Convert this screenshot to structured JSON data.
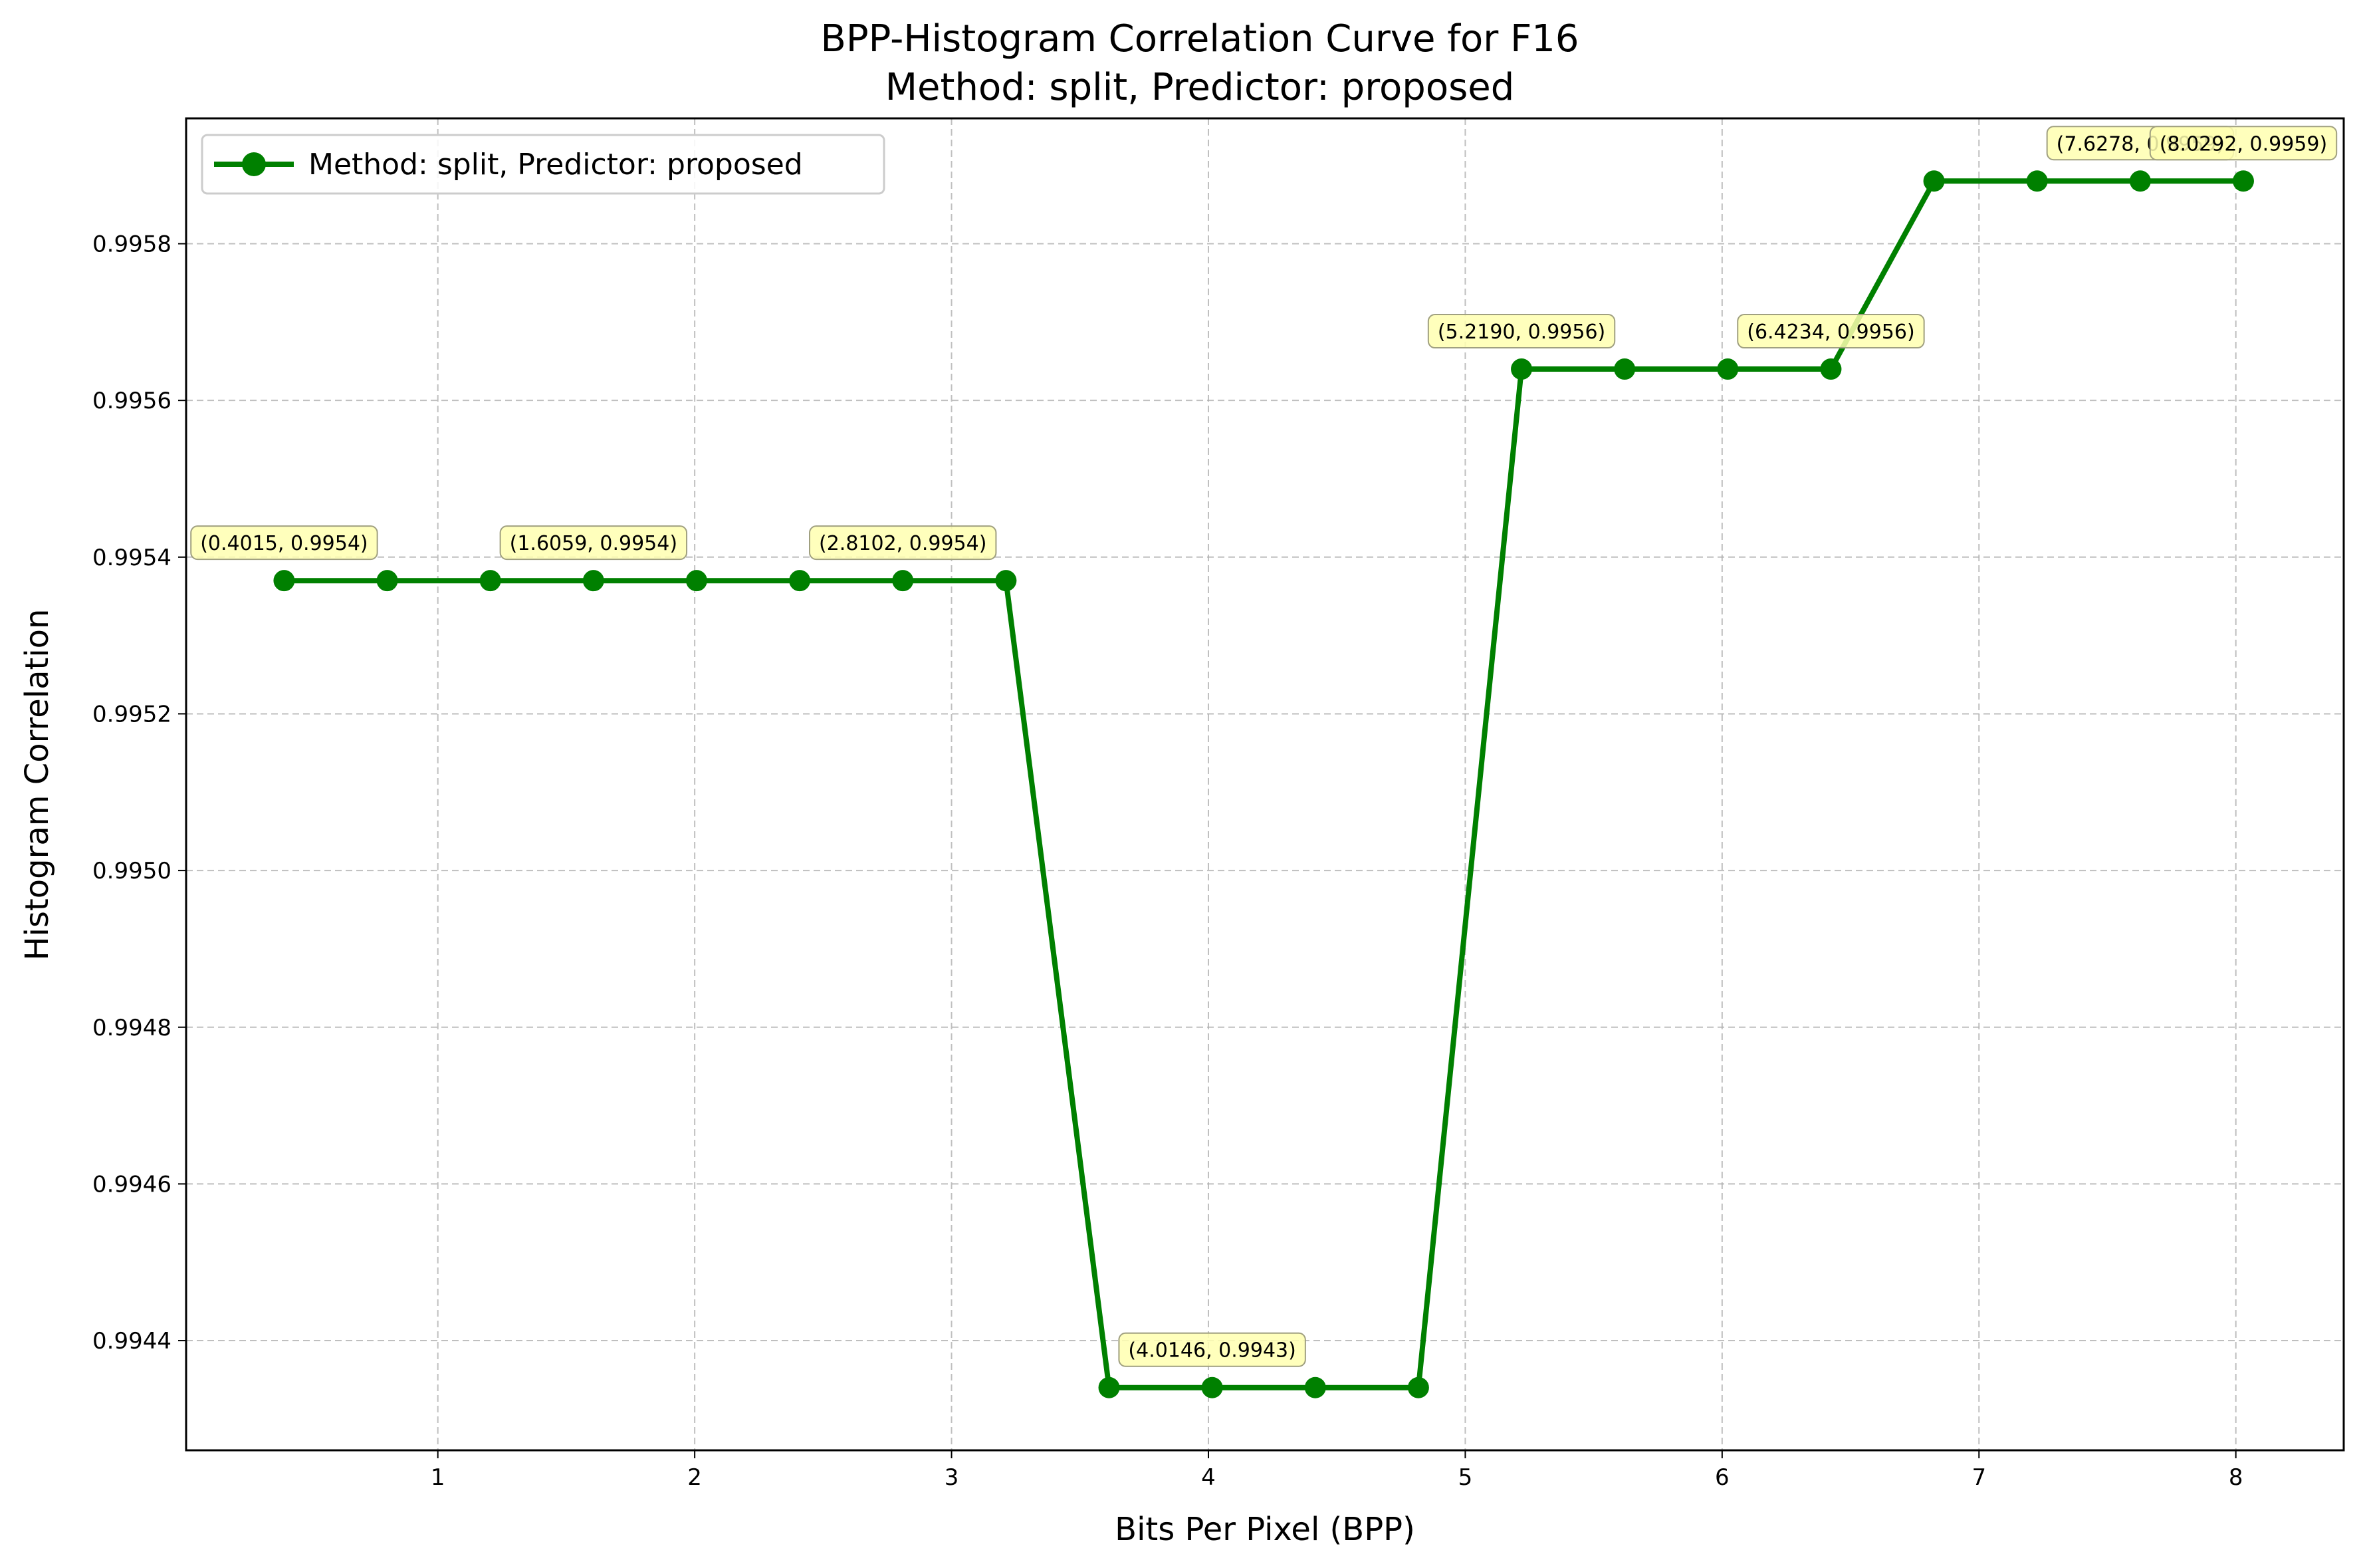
{
  "chart_data": {
    "type": "line",
    "title": "BPP-Histogram Correlation Curve for F16",
    "subtitle": "Method: split, Predictor: proposed",
    "xlabel": "Bits Per Pixel (BPP)",
    "ylabel": "Histogram Correlation",
    "xlim": [
      0.02,
      8.42
    ],
    "ylim": [
      0.99426,
      0.99596
    ],
    "x_ticks": [
      1,
      2,
      3,
      4,
      5,
      6,
      7,
      8
    ],
    "x_tick_labels": [
      "1",
      "2",
      "3",
      "4",
      "5",
      "6",
      "7",
      "8"
    ],
    "y_ticks": [
      0.9944,
      0.9946,
      0.9948,
      0.995,
      0.9952,
      0.9954,
      0.9956,
      0.9958
    ],
    "y_tick_labels": [
      "0.9944",
      "0.9946",
      "0.9948",
      "0.9950",
      "0.9952",
      "0.9954",
      "0.9956",
      "0.9958"
    ],
    "grid": true,
    "legend_position": "top-left",
    "series": [
      {
        "name": "Method: split, Predictor: proposed",
        "color": "#008000",
        "marker": "circle",
        "x": [
          0.4015,
          0.8029,
          1.2044,
          1.6059,
          2.0073,
          2.4088,
          2.8102,
          3.2117,
          3.6132,
          4.0146,
          4.4161,
          4.8175,
          5.219,
          5.6205,
          6.0219,
          6.4234,
          6.8248,
          7.2263,
          7.6278,
          8.0292
        ],
        "y": [
          0.99537,
          0.99537,
          0.99537,
          0.99537,
          0.99537,
          0.99537,
          0.99537,
          0.99537,
          0.99434,
          0.99434,
          0.99434,
          0.99434,
          0.99564,
          0.99564,
          0.99564,
          0.99564,
          0.99588,
          0.99588,
          0.99588,
          0.99588
        ]
      }
    ],
    "annotations": [
      {
        "text": "(0.4015, 0.9954)",
        "x": 0.4015,
        "y": 0.99537
      },
      {
        "text": "(1.6059, 0.9954)",
        "x": 1.6059,
        "y": 0.99537
      },
      {
        "text": "(2.8102, 0.9954)",
        "x": 2.8102,
        "y": 0.99537
      },
      {
        "text": "(4.0146, 0.9943)",
        "x": 4.0146,
        "y": 0.99434
      },
      {
        "text": "(5.2190, 0.9956)",
        "x": 5.219,
        "y": 0.99564
      },
      {
        "text": "(6.4234, 0.9956)",
        "x": 6.4234,
        "y": 0.99564
      },
      {
        "text": "(7.6278, 0.9959)",
        "x": 7.6278,
        "y": 0.99588
      },
      {
        "text": "(8.0292, 0.9959)",
        "x": 8.0292,
        "y": 0.99588
      }
    ],
    "annotation_style": {
      "fill": "#ffffb0",
      "border": "#a0a080"
    }
  }
}
